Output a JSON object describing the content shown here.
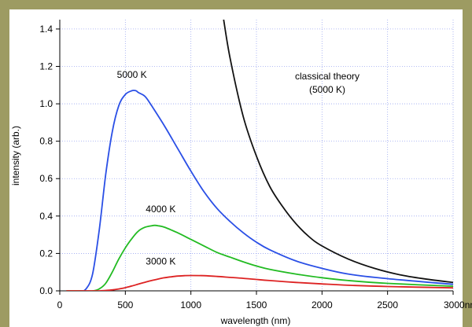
{
  "chart_data": {
    "type": "line",
    "xlabel": "wavelength (nm)",
    "ylabel": "intensity (arb.)",
    "xlim": [
      0,
      3000
    ],
    "ylim": [
      0,
      1.45
    ],
    "x_ticks": [
      0,
      500,
      1000,
      1500,
      2000,
      2500,
      3000
    ],
    "x_tick_labels": [
      "0",
      "500",
      "1000",
      "1500",
      "2000",
      "2500",
      "3000nm"
    ],
    "y_ticks": [
      0.0,
      0.2,
      0.4,
      0.6,
      0.8,
      1.0,
      1.2,
      1.4
    ],
    "y_tick_labels": [
      "0.0",
      "0.2",
      "0.4",
      "0.6",
      "0.8",
      "1.0",
      "1.2",
      "1.4"
    ],
    "grid": true,
    "series": [
      {
        "name": "5000 K",
        "color": "#2a4fe6",
        "x": [
          50,
          150,
          200,
          250,
          300,
          350,
          400,
          450,
          500,
          550,
          580,
          600,
          650,
          700,
          800,
          900,
          1000,
          1100,
          1200,
          1300,
          1400,
          1500,
          1600,
          1800,
          2000,
          2200,
          2500,
          3000
        ],
        "values": [
          0.0,
          0.0,
          0.01,
          0.09,
          0.32,
          0.62,
          0.85,
          0.99,
          1.05,
          1.07,
          1.07,
          1.06,
          1.04,
          0.99,
          0.88,
          0.76,
          0.64,
          0.53,
          0.44,
          0.37,
          0.31,
          0.26,
          0.22,
          0.16,
          0.12,
          0.09,
          0.065,
          0.035
        ]
      },
      {
        "name": "4000 K",
        "color": "#22bb22",
        "x": [
          50,
          150,
          250,
          300,
          350,
          400,
          450,
          500,
          550,
          600,
          650,
          700,
          725,
          750,
          800,
          900,
          1000,
          1100,
          1200,
          1300,
          1400,
          1500,
          1600,
          1800,
          2000,
          2200,
          2500,
          3000
        ],
        "values": [
          0.0,
          0.0,
          0.0,
          0.01,
          0.04,
          0.1,
          0.17,
          0.23,
          0.28,
          0.32,
          0.34,
          0.348,
          0.35,
          0.348,
          0.34,
          0.31,
          0.275,
          0.24,
          0.205,
          0.18,
          0.155,
          0.133,
          0.115,
          0.09,
          0.07,
          0.055,
          0.04,
          0.025
        ]
      },
      {
        "name": "3000 K",
        "color": "#dd2222",
        "x": [
          50,
          250,
          300,
          350,
          400,
          450,
          500,
          550,
          600,
          650,
          700,
          750,
          800,
          850,
          900,
          950,
          1000,
          1100,
          1200,
          1300,
          1400,
          1500,
          1600,
          1800,
          2000,
          2200,
          2500,
          3000
        ],
        "values": [
          0.0,
          0.0,
          0.0,
          0.002,
          0.005,
          0.01,
          0.017,
          0.026,
          0.036,
          0.046,
          0.055,
          0.063,
          0.07,
          0.075,
          0.079,
          0.081,
          0.082,
          0.081,
          0.077,
          0.072,
          0.067,
          0.061,
          0.055,
          0.045,
          0.037,
          0.03,
          0.023,
          0.016
        ]
      },
      {
        "name": "classical theory (5000 K)",
        "color": "#111111",
        "x": [
          1250,
          1300,
          1400,
          1500,
          1600,
          1700,
          1800,
          1900,
          2000,
          2200,
          2400,
          2600,
          2800,
          3000
        ],
        "values": [
          1.45,
          1.24,
          0.93,
          0.72,
          0.56,
          0.45,
          0.36,
          0.29,
          0.24,
          0.17,
          0.12,
          0.085,
          0.062,
          0.045
        ]
      }
    ],
    "annotations": [
      {
        "text": "5000 K",
        "x": 550,
        "y": 1.14
      },
      {
        "text": "4000 K",
        "x": 770,
        "y": 0.42
      },
      {
        "text": "3000 K",
        "x": 770,
        "y": 0.14
      },
      {
        "text": "classical theory",
        "x": 2040,
        "y": 1.13
      },
      {
        "text": "(5000 K)",
        "x": 2040,
        "y": 1.06
      }
    ]
  }
}
